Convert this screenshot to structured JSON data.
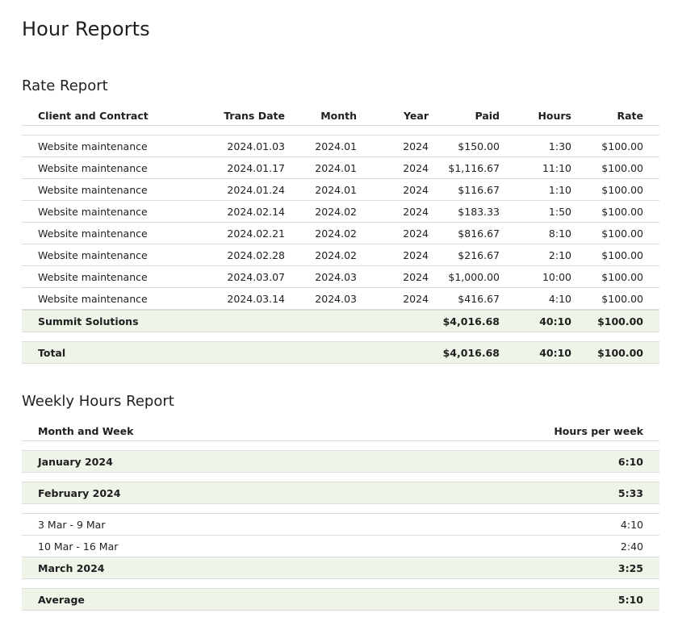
{
  "page_title": "Hour Reports",
  "rate_report": {
    "title": "Rate Report",
    "columns": [
      "Client and Contract",
      "Trans Date",
      "Month",
      "Year",
      "Paid",
      "Hours",
      "Rate"
    ],
    "rows": [
      {
        "name": "Website maintenance",
        "trans_date": "2024.01.03",
        "month": "2024.01",
        "year": "2024",
        "paid": "$150.00",
        "hours": "1:30",
        "rate": "$100.00"
      },
      {
        "name": "Website maintenance",
        "trans_date": "2024.01.17",
        "month": "2024.01",
        "year": "2024",
        "paid": "$1,116.67",
        "hours": "11:10",
        "rate": "$100.00"
      },
      {
        "name": "Website maintenance",
        "trans_date": "2024.01.24",
        "month": "2024.01",
        "year": "2024",
        "paid": "$116.67",
        "hours": "1:10",
        "rate": "$100.00"
      },
      {
        "name": "Website maintenance",
        "trans_date": "2024.02.14",
        "month": "2024.02",
        "year": "2024",
        "paid": "$183.33",
        "hours": "1:50",
        "rate": "$100.00"
      },
      {
        "name": "Website maintenance",
        "trans_date": "2024.02.21",
        "month": "2024.02",
        "year": "2024",
        "paid": "$816.67",
        "hours": "8:10",
        "rate": "$100.00"
      },
      {
        "name": "Website maintenance",
        "trans_date": "2024.02.28",
        "month": "2024.02",
        "year": "2024",
        "paid": "$216.67",
        "hours": "2:10",
        "rate": "$100.00"
      },
      {
        "name": "Website maintenance",
        "trans_date": "2024.03.07",
        "month": "2024.03",
        "year": "2024",
        "paid": "$1,000.00",
        "hours": "10:00",
        "rate": "$100.00"
      },
      {
        "name": "Website maintenance",
        "trans_date": "2024.03.14",
        "month": "2024.03",
        "year": "2024",
        "paid": "$416.67",
        "hours": "4:10",
        "rate": "$100.00"
      }
    ],
    "subtotal": {
      "name": "Summit Solutions",
      "paid": "$4,016.68",
      "hours": "40:10",
      "rate": "$100.00"
    },
    "total": {
      "name": "Total",
      "paid": "$4,016.68",
      "hours": "40:10",
      "rate": "$100.00"
    }
  },
  "weekly_report": {
    "title": "Weekly Hours Report",
    "columns": [
      "Month and Week",
      "Hours per week"
    ],
    "january": {
      "label": "January 2024",
      "hours": "6:10"
    },
    "february": {
      "label": "February 2024",
      "hours": "5:33"
    },
    "march_weeks": [
      {
        "label": "3 Mar - 9 Mar",
        "hours": "4:10"
      },
      {
        "label": "10 Mar - 16 Mar",
        "hours": "2:40"
      }
    ],
    "march": {
      "label": "March 2024",
      "hours": "3:25"
    },
    "average": {
      "label": "Average",
      "hours": "5:10"
    }
  }
}
